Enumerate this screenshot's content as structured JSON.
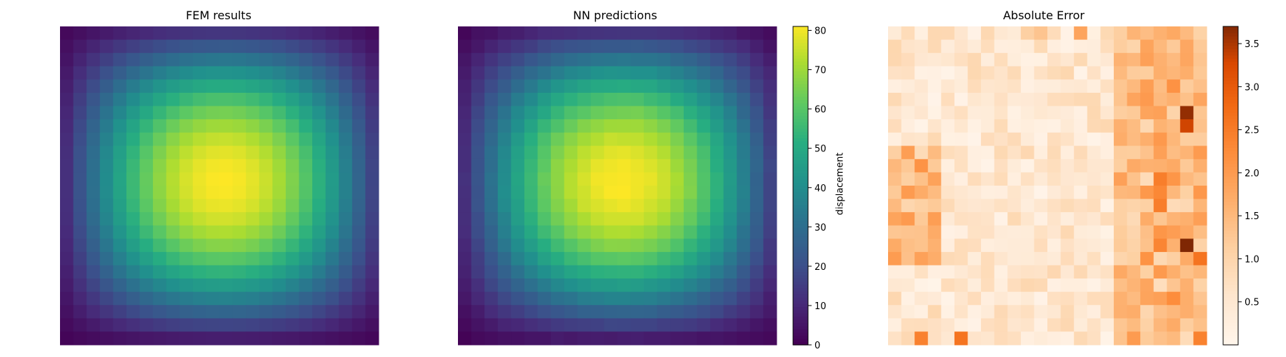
{
  "chart_data": [
    {
      "type": "heatmap",
      "title": "FEM results",
      "grid": [
        24,
        24
      ],
      "colormap": "viridis",
      "field": "displacement",
      "vmin": 0,
      "vmax": 81,
      "peak_value": 81,
      "edge_value": 0
    },
    {
      "type": "heatmap",
      "title": "NN predictions",
      "grid": [
        24,
        24
      ],
      "colormap": "viridis",
      "field": "displacement",
      "vmin": 0,
      "vmax": 81,
      "colorbar": {
        "label": "displacement",
        "ticks": [
          0,
          10,
          20,
          30,
          40,
          50,
          60,
          70,
          80
        ],
        "range": [
          0,
          81
        ]
      }
    },
    {
      "type": "heatmap",
      "title": "Absolute Error",
      "grid": [
        24,
        24
      ],
      "colormap": "oranges",
      "vmin": 0,
      "vmax": 3.7,
      "colorbar": {
        "label": "",
        "ticks": [
          0.5,
          1.0,
          1.5,
          2.0,
          2.5,
          3.0,
          3.5
        ],
        "tick_labels": [
          "0.5",
          "1.0",
          "1.5",
          "2.0",
          "2.5",
          "3.0",
          "3.5"
        ],
        "range": [
          0,
          3.7
        ]
      },
      "hotspots": [
        {
          "row": 6,
          "col": 22,
          "value": 3.6
        },
        {
          "row": 7,
          "col": 22,
          "value": 3.3
        },
        {
          "row": 16,
          "col": 22,
          "value": 3.7
        },
        {
          "row": 17,
          "col": 23,
          "value": 2.6
        },
        {
          "row": 23,
          "col": 2,
          "value": 2.4
        },
        {
          "row": 23,
          "col": 5,
          "value": 2.6
        },
        {
          "row": 14,
          "col": 1,
          "value": 2.0
        },
        {
          "row": 12,
          "col": 20,
          "value": 2.3
        }
      ]
    }
  ]
}
